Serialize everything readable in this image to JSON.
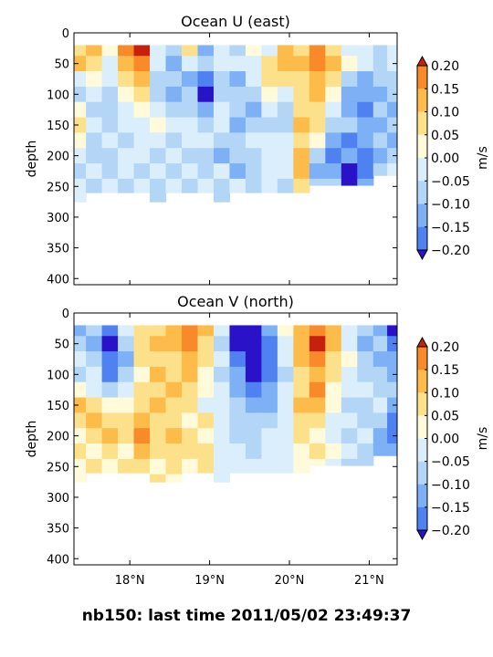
{
  "suptitle": "nb150: last time 2011/05/02 23:49:37",
  "colormap": {
    "levels": [
      -0.2,
      -0.15,
      -0.1,
      -0.05,
      0.0,
      0.05,
      0.1,
      0.15,
      0.2
    ],
    "colors": [
      "#3b3be8",
      "#4f82f0",
      "#7db0f5",
      "#b3d6f7",
      "#dbeefb",
      "#fffbda",
      "#fde08a",
      "#fdbb4a",
      "#f88a2a",
      "#e84a1a"
    ],
    "under_color": "#2a12c8",
    "over_color": "#c8200f"
  },
  "chart_data": [
    {
      "type": "heatmap",
      "title": "Ocean U (east)",
      "ylabel": "depth",
      "xlim": [
        17.3,
        21.35
      ],
      "ylim": [
        410,
        0
      ],
      "x_ticks": [
        18,
        19,
        20,
        21
      ],
      "x_tick_labels": [
        "18°N",
        "19°N",
        "20°N",
        "21°N"
      ],
      "y_ticks": [
        0,
        50,
        100,
        150,
        200,
        250,
        300,
        350,
        400
      ],
      "y_tick_labels": [
        "0",
        "50",
        "100",
        "150",
        "200",
        "250",
        "300",
        "350",
        "400"
      ],
      "colorbar_label": "m/s",
      "colorbar_ticks": [
        "0.20",
        "0.15",
        "0.10",
        "0.05",
        "0.00",
        "−0.05",
        "−0.10",
        "−0.15",
        "−0.20"
      ],
      "data_top_depth": 20,
      "x": [
        17.35,
        17.55,
        17.75,
        17.95,
        18.15,
        18.35,
        18.55,
        18.75,
        18.95,
        19.15,
        19.35,
        19.55,
        19.75,
        19.95,
        20.15,
        20.35,
        20.55,
        20.75,
        20.95,
        21.15,
        21.3
      ],
      "bottom_depth": [
        275,
        260,
        260,
        260,
        260,
        275,
        260,
        260,
        260,
        275,
        260,
        260,
        260,
        260,
        260,
        248,
        248,
        248,
        248,
        232,
        232
      ],
      "depth": [
        25,
        50,
        75,
        100,
        125,
        150,
        175,
        200,
        225,
        250,
        275
      ],
      "values": [
        [
          0.05,
          0.1,
          0.0,
          0.15,
          0.2,
          -0.05,
          -0.1,
          0.05,
          -0.15,
          -0.05,
          -0.1,
          0.0,
          -0.05,
          0.1,
          0.05,
          0.15,
          0.05,
          -0.05,
          -0.05,
          -0.1,
          -0.05
        ],
        [
          0.1,
          0.05,
          -0.05,
          0.1,
          0.15,
          -0.05,
          -0.15,
          -0.05,
          -0.1,
          -0.05,
          -0.05,
          -0.05,
          0.05,
          0.1,
          0.1,
          0.15,
          0.1,
          0.0,
          -0.05,
          -0.1,
          -0.05
        ],
        [
          -0.05,
          0.0,
          -0.05,
          0.05,
          0.1,
          -0.1,
          -0.1,
          -0.15,
          -0.2,
          -0.1,
          -0.15,
          -0.05,
          0.05,
          0.05,
          0.05,
          0.1,
          0.05,
          -0.1,
          -0.15,
          -0.1,
          -0.1
        ],
        [
          -0.1,
          -0.05,
          -0.1,
          0.0,
          0.05,
          -0.1,
          -0.15,
          -0.1,
          -0.25,
          -0.1,
          -0.1,
          -0.1,
          0.0,
          -0.05,
          0.05,
          0.1,
          0.0,
          -0.15,
          -0.15,
          -0.15,
          -0.1
        ],
        [
          0.0,
          -0.1,
          -0.1,
          -0.05,
          0.0,
          -0.05,
          -0.1,
          -0.1,
          -0.15,
          -0.05,
          -0.1,
          -0.15,
          -0.05,
          -0.1,
          0.05,
          0.05,
          -0.05,
          -0.15,
          -0.2,
          -0.1,
          -0.15
        ],
        [
          0.05,
          -0.05,
          -0.1,
          -0.05,
          -0.05,
          0.0,
          -0.05,
          -0.05,
          -0.1,
          -0.05,
          -0.15,
          -0.1,
          -0.1,
          -0.1,
          0.1,
          0.05,
          -0.1,
          -0.1,
          -0.15,
          -0.15,
          -0.1
        ],
        [
          0.0,
          -0.1,
          -0.05,
          -0.1,
          -0.05,
          -0.05,
          -0.1,
          -0.05,
          -0.05,
          -0.1,
          -0.1,
          -0.05,
          -0.05,
          -0.05,
          0.05,
          0.0,
          -0.15,
          -0.2,
          -0.15,
          -0.1,
          -0.15
        ],
        [
          -0.05,
          -0.1,
          -0.1,
          -0.05,
          -0.05,
          -0.1,
          -0.05,
          -0.1,
          -0.1,
          -0.15,
          -0.1,
          -0.1,
          -0.05,
          -0.05,
          0.1,
          -0.1,
          -0.2,
          -0.15,
          -0.2,
          -0.15,
          -0.1
        ],
        [
          -0.1,
          -0.05,
          -0.1,
          -0.05,
          -0.1,
          -0.05,
          -0.1,
          -0.05,
          -0.1,
          -0.05,
          -0.15,
          -0.1,
          -0.05,
          -0.05,
          0.1,
          -0.15,
          -0.15,
          -0.25,
          -0.2,
          -0.1,
          -0.05
        ],
        [
          -0.05,
          -0.1,
          -0.05,
          -0.1,
          -0.05,
          -0.1,
          -0.05,
          -0.1,
          -0.05,
          -0.1,
          -0.05,
          -0.1,
          -0.05,
          -0.1,
          0.05,
          -0.1,
          -0.1,
          -0.25,
          -0.15,
          -0.1,
          -0.05
        ],
        [
          -0.05,
          -0.1,
          -0.05,
          -0.1,
          -0.05,
          -0.1,
          -0.05,
          -0.1,
          -0.05,
          -0.1,
          -0.05,
          -0.05,
          -0.05,
          -0.1,
          0.05,
          -0.1,
          -0.1,
          -0.15,
          -0.1,
          -0.05,
          -0.05
        ]
      ]
    },
    {
      "type": "heatmap",
      "title": "Ocean V (north)",
      "ylabel": "depth",
      "xlim": [
        17.3,
        21.35
      ],
      "ylim": [
        410,
        0
      ],
      "x_ticks": [
        18,
        19,
        20,
        21
      ],
      "x_tick_labels": [
        "18°N",
        "19°N",
        "20°N",
        "21°N"
      ],
      "y_ticks": [
        0,
        50,
        100,
        150,
        200,
        250,
        300,
        350,
        400
      ],
      "y_tick_labels": [
        "0",
        "50",
        "100",
        "150",
        "200",
        "250",
        "300",
        "350",
        "400"
      ],
      "colorbar_label": "m/s",
      "colorbar_ticks": [
        "0.20",
        "0.15",
        "0.10",
        "0.05",
        "0.00",
        "−0.05",
        "−0.10",
        "−0.15",
        "−0.20"
      ],
      "data_top_depth": 20,
      "x": [
        17.35,
        17.55,
        17.75,
        17.95,
        18.15,
        18.35,
        18.55,
        18.75,
        18.95,
        19.15,
        19.35,
        19.55,
        19.75,
        19.95,
        20.15,
        20.35,
        20.55,
        20.75,
        20.95,
        21.15,
        21.3
      ],
      "bottom_depth": [
        275,
        260,
        260,
        260,
        260,
        275,
        275,
        260,
        260,
        275,
        260,
        260,
        260,
        260,
        260,
        248,
        248,
        248,
        248,
        232,
        232
      ],
      "depth": [
        25,
        50,
        75,
        100,
        125,
        150,
        175,
        200,
        225,
        250,
        275
      ],
      "values": [
        [
          -0.15,
          -0.1,
          -0.2,
          -0.05,
          0.05,
          0.05,
          0.1,
          0.15,
          0.1,
          -0.05,
          -0.25,
          -0.25,
          -0.15,
          0.0,
          0.1,
          0.15,
          0.1,
          -0.05,
          -0.1,
          -0.15,
          -0.25
        ],
        [
          -0.1,
          -0.15,
          -0.25,
          -0.1,
          0.05,
          0.1,
          0.1,
          0.15,
          0.05,
          -0.1,
          -0.25,
          -0.25,
          -0.2,
          -0.05,
          0.1,
          0.2,
          0.1,
          -0.05,
          -0.15,
          -0.1,
          -0.2
        ],
        [
          -0.05,
          -0.1,
          -0.2,
          -0.15,
          0.05,
          0.05,
          0.05,
          0.1,
          0.05,
          -0.05,
          -0.2,
          -0.25,
          -0.2,
          -0.05,
          0.1,
          0.15,
          0.05,
          0.0,
          -0.1,
          -0.15,
          -0.15
        ],
        [
          -0.1,
          -0.05,
          -0.2,
          -0.1,
          0.0,
          0.1,
          0.05,
          0.1,
          0.0,
          -0.1,
          -0.15,
          -0.25,
          -0.2,
          -0.1,
          0.05,
          0.1,
          0.05,
          -0.05,
          -0.1,
          -0.1,
          -0.15
        ],
        [
          0.0,
          -0.05,
          -0.1,
          -0.05,
          0.05,
          0.05,
          0.1,
          0.05,
          0.0,
          -0.05,
          -0.15,
          -0.2,
          -0.15,
          -0.05,
          0.05,
          0.15,
          0.0,
          -0.05,
          -0.05,
          -0.1,
          -0.1
        ],
        [
          0.1,
          0.05,
          0.0,
          0.0,
          0.05,
          0.1,
          0.05,
          0.05,
          -0.05,
          -0.05,
          -0.1,
          -0.15,
          -0.15,
          -0.05,
          0.1,
          0.1,
          0.0,
          -0.1,
          -0.1,
          -0.05,
          -0.15
        ],
        [
          0.05,
          0.1,
          0.05,
          0.05,
          0.1,
          0.05,
          0.05,
          0.0,
          0.05,
          -0.05,
          -0.1,
          -0.1,
          -0.1,
          -0.05,
          0.05,
          0.05,
          -0.05,
          -0.05,
          -0.1,
          -0.1,
          -0.2
        ],
        [
          0.0,
          0.05,
          0.1,
          0.05,
          0.15,
          0.05,
          0.1,
          0.05,
          0.0,
          -0.05,
          -0.1,
          -0.1,
          -0.05,
          -0.05,
          0.05,
          0.0,
          -0.05,
          -0.1,
          -0.05,
          -0.15,
          -0.2
        ],
        [
          0.05,
          0.0,
          0.05,
          0.0,
          0.1,
          0.05,
          0.05,
          0.05,
          0.05,
          -0.05,
          -0.05,
          -0.1,
          -0.05,
          -0.05,
          0.0,
          0.05,
          0.0,
          -0.05,
          -0.1,
          -0.15,
          -0.15
        ],
        [
          0.0,
          0.05,
          0.0,
          0.05,
          0.05,
          0.0,
          0.05,
          0.0,
          0.05,
          -0.05,
          -0.05,
          -0.05,
          -0.05,
          -0.05,
          0.0,
          0.0,
          -0.05,
          -0.1,
          -0.1,
          -0.1,
          -0.1
        ],
        [
          0.0,
          0.05,
          0.0,
          0.05,
          0.0,
          0.05,
          0.0,
          0.05,
          0.0,
          -0.05,
          -0.05,
          -0.05,
          -0.05,
          0.0,
          0.0,
          0.0,
          -0.05,
          -0.05,
          -0.1,
          -0.1,
          -0.1
        ]
      ]
    }
  ]
}
